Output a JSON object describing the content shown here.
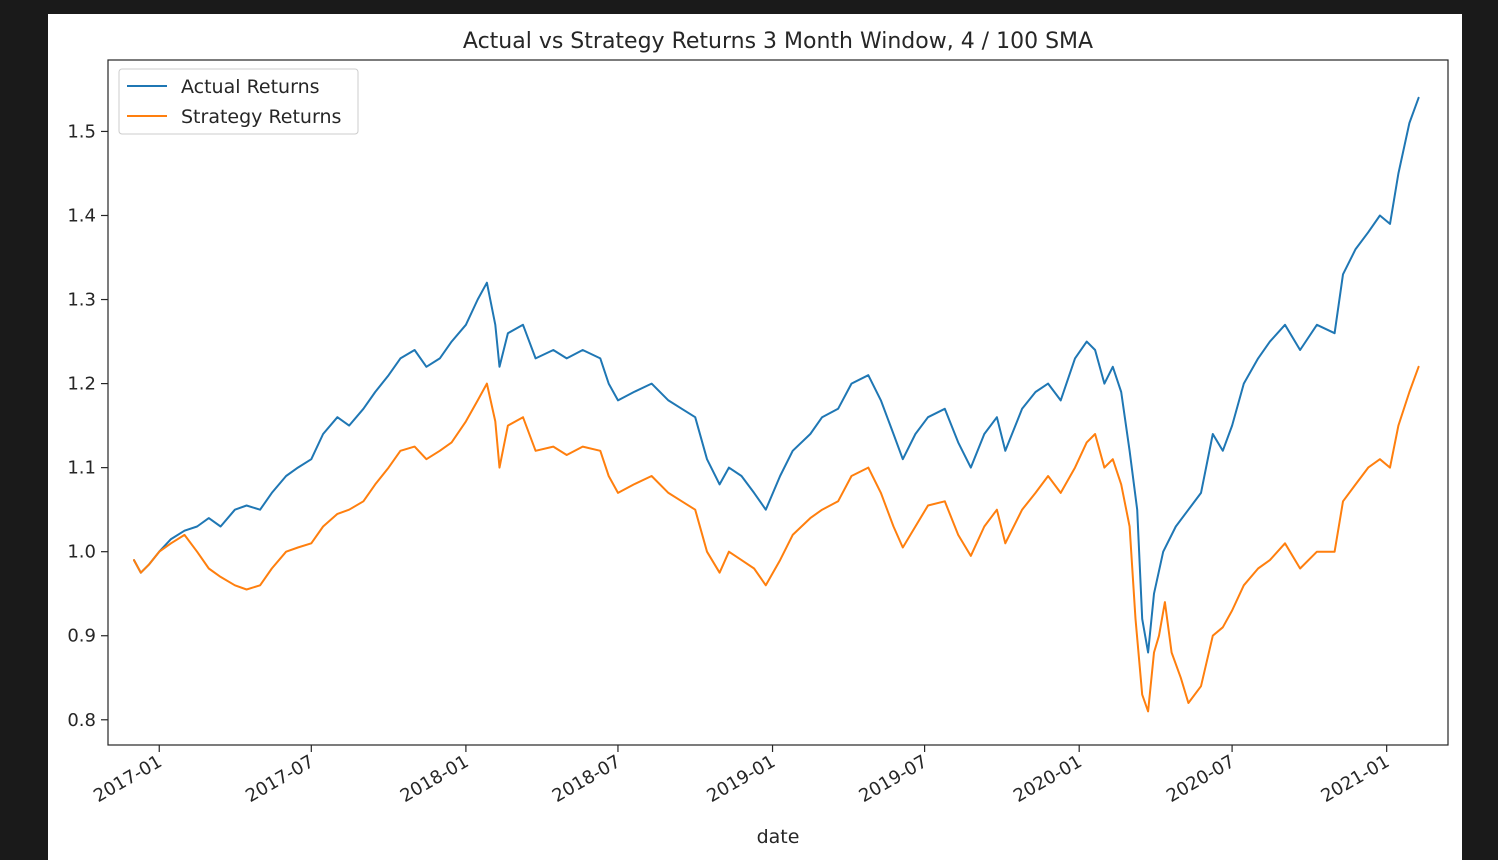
{
  "chart_data": {
    "type": "line",
    "title": "Actual vs Strategy Returns 3 Month Window, 4 / 100 SMA",
    "xlabel": "date",
    "ylabel": "",
    "xlim": [
      "2016-11-01",
      "2021-03-15"
    ],
    "ylim": [
      0.77,
      1.585
    ],
    "y_ticks": [
      0.8,
      0.9,
      1.0,
      1.1,
      1.2,
      1.3,
      1.4,
      1.5
    ],
    "x_ticks": [
      "2017-01",
      "2017-07",
      "2018-01",
      "2018-07",
      "2019-01",
      "2019-07",
      "2020-01",
      "2020-07",
      "2021-01"
    ],
    "grid": false,
    "legend_position": "top-left",
    "colors": {
      "actual": "#1f77b4",
      "strategy": "#ff7f0e"
    },
    "series": [
      {
        "name": "Actual Returns",
        "color": "#1f77b4",
        "points": [
          [
            "2016-12-02",
            0.99
          ],
          [
            "2016-12-10",
            0.975
          ],
          [
            "2016-12-20",
            0.985
          ],
          [
            "2017-01-01",
            1.0
          ],
          [
            "2017-01-15",
            1.015
          ],
          [
            "2017-01-31",
            1.025
          ],
          [
            "2017-02-15",
            1.03
          ],
          [
            "2017-03-01",
            1.04
          ],
          [
            "2017-03-15",
            1.03
          ],
          [
            "2017-04-01",
            1.05
          ],
          [
            "2017-04-15",
            1.055
          ],
          [
            "2017-05-01",
            1.05
          ],
          [
            "2017-05-15",
            1.07
          ],
          [
            "2017-06-01",
            1.09
          ],
          [
            "2017-06-15",
            1.1
          ],
          [
            "2017-07-01",
            1.11
          ],
          [
            "2017-07-15",
            1.14
          ],
          [
            "2017-08-01",
            1.16
          ],
          [
            "2017-08-15",
            1.15
          ],
          [
            "2017-09-01",
            1.17
          ],
          [
            "2017-09-15",
            1.19
          ],
          [
            "2017-10-01",
            1.21
          ],
          [
            "2017-10-15",
            1.23
          ],
          [
            "2017-11-01",
            1.24
          ],
          [
            "2017-11-15",
            1.22
          ],
          [
            "2017-12-01",
            1.23
          ],
          [
            "2017-12-15",
            1.25
          ],
          [
            "2018-01-01",
            1.27
          ],
          [
            "2018-01-15",
            1.3
          ],
          [
            "2018-01-26",
            1.32
          ],
          [
            "2018-02-05",
            1.27
          ],
          [
            "2018-02-10",
            1.22
          ],
          [
            "2018-02-20",
            1.26
          ],
          [
            "2018-03-10",
            1.27
          ],
          [
            "2018-03-25",
            1.23
          ],
          [
            "2018-04-15",
            1.24
          ],
          [
            "2018-05-01",
            1.23
          ],
          [
            "2018-05-20",
            1.24
          ],
          [
            "2018-06-10",
            1.23
          ],
          [
            "2018-06-20",
            1.2
          ],
          [
            "2018-07-01",
            1.18
          ],
          [
            "2018-07-20",
            1.19
          ],
          [
            "2018-08-10",
            1.2
          ],
          [
            "2018-08-30",
            1.18
          ],
          [
            "2018-09-15",
            1.17
          ],
          [
            "2018-10-01",
            1.16
          ],
          [
            "2018-10-15",
            1.11
          ],
          [
            "2018-10-30",
            1.08
          ],
          [
            "2018-11-10",
            1.1
          ],
          [
            "2018-11-25",
            1.09
          ],
          [
            "2018-12-10",
            1.07
          ],
          [
            "2018-12-24",
            1.05
          ],
          [
            "2019-01-10",
            1.09
          ],
          [
            "2019-01-25",
            1.12
          ],
          [
            "2019-02-15",
            1.14
          ],
          [
            "2019-03-01",
            1.16
          ],
          [
            "2019-03-20",
            1.17
          ],
          [
            "2019-04-05",
            1.2
          ],
          [
            "2019-04-25",
            1.21
          ],
          [
            "2019-05-10",
            1.18
          ],
          [
            "2019-05-25",
            1.14
          ],
          [
            "2019-06-05",
            1.11
          ],
          [
            "2019-06-20",
            1.14
          ],
          [
            "2019-07-05",
            1.16
          ],
          [
            "2019-07-25",
            1.17
          ],
          [
            "2019-08-10",
            1.13
          ],
          [
            "2019-08-25",
            1.1
          ],
          [
            "2019-09-10",
            1.14
          ],
          [
            "2019-09-25",
            1.16
          ],
          [
            "2019-10-05",
            1.12
          ],
          [
            "2019-10-25",
            1.17
          ],
          [
            "2019-11-10",
            1.19
          ],
          [
            "2019-11-25",
            1.2
          ],
          [
            "2019-12-10",
            1.18
          ],
          [
            "2019-12-27",
            1.23
          ],
          [
            "2020-01-10",
            1.25
          ],
          [
            "2020-01-20",
            1.24
          ],
          [
            "2020-01-31",
            1.2
          ],
          [
            "2020-02-10",
            1.22
          ],
          [
            "2020-02-20",
            1.19
          ],
          [
            "2020-03-01",
            1.12
          ],
          [
            "2020-03-10",
            1.05
          ],
          [
            "2020-03-16",
            0.92
          ],
          [
            "2020-03-23",
            0.88
          ],
          [
            "2020-03-30",
            0.95
          ],
          [
            "2020-04-10",
            1.0
          ],
          [
            "2020-04-25",
            1.03
          ],
          [
            "2020-05-10",
            1.05
          ],
          [
            "2020-05-25",
            1.07
          ],
          [
            "2020-06-08",
            1.14
          ],
          [
            "2020-06-20",
            1.12
          ],
          [
            "2020-07-01",
            1.15
          ],
          [
            "2020-07-15",
            1.2
          ],
          [
            "2020-08-01",
            1.23
          ],
          [
            "2020-08-15",
            1.25
          ],
          [
            "2020-09-02",
            1.27
          ],
          [
            "2020-09-20",
            1.24
          ],
          [
            "2020-10-10",
            1.27
          ],
          [
            "2020-10-31",
            1.26
          ],
          [
            "2020-11-10",
            1.33
          ],
          [
            "2020-11-25",
            1.36
          ],
          [
            "2020-12-10",
            1.38
          ],
          [
            "2020-12-24",
            1.4
          ],
          [
            "2021-01-05",
            1.39
          ],
          [
            "2021-01-15",
            1.45
          ],
          [
            "2021-01-28",
            1.51
          ],
          [
            "2021-02-08",
            1.54
          ]
        ]
      },
      {
        "name": "Strategy Returns",
        "color": "#ff7f0e",
        "points": [
          [
            "2016-12-02",
            0.99
          ],
          [
            "2016-12-10",
            0.975
          ],
          [
            "2016-12-20",
            0.985
          ],
          [
            "2017-01-01",
            1.0
          ],
          [
            "2017-01-15",
            1.01
          ],
          [
            "2017-01-31",
            1.02
          ],
          [
            "2017-02-15",
            1.0
          ],
          [
            "2017-03-01",
            0.98
          ],
          [
            "2017-03-15",
            0.97
          ],
          [
            "2017-04-01",
            0.96
          ],
          [
            "2017-04-15",
            0.955
          ],
          [
            "2017-05-01",
            0.96
          ],
          [
            "2017-05-15",
            0.98
          ],
          [
            "2017-06-01",
            1.0
          ],
          [
            "2017-06-15",
            1.005
          ],
          [
            "2017-07-01",
            1.01
          ],
          [
            "2017-07-15",
            1.03
          ],
          [
            "2017-08-01",
            1.045
          ],
          [
            "2017-08-15",
            1.05
          ],
          [
            "2017-09-01",
            1.06
          ],
          [
            "2017-09-15",
            1.08
          ],
          [
            "2017-10-01",
            1.1
          ],
          [
            "2017-10-15",
            1.12
          ],
          [
            "2017-11-01",
            1.125
          ],
          [
            "2017-11-15",
            1.11
          ],
          [
            "2017-12-01",
            1.12
          ],
          [
            "2017-12-15",
            1.13
          ],
          [
            "2018-01-01",
            1.155
          ],
          [
            "2018-01-15",
            1.18
          ],
          [
            "2018-01-26",
            1.2
          ],
          [
            "2018-02-05",
            1.155
          ],
          [
            "2018-02-10",
            1.1
          ],
          [
            "2018-02-20",
            1.15
          ],
          [
            "2018-03-10",
            1.16
          ],
          [
            "2018-03-25",
            1.12
          ],
          [
            "2018-04-15",
            1.125
          ],
          [
            "2018-05-01",
            1.115
          ],
          [
            "2018-05-20",
            1.125
          ],
          [
            "2018-06-10",
            1.12
          ],
          [
            "2018-06-20",
            1.09
          ],
          [
            "2018-07-01",
            1.07
          ],
          [
            "2018-07-20",
            1.08
          ],
          [
            "2018-08-10",
            1.09
          ],
          [
            "2018-08-30",
            1.07
          ],
          [
            "2018-09-15",
            1.06
          ],
          [
            "2018-10-01",
            1.05
          ],
          [
            "2018-10-15",
            1.0
          ],
          [
            "2018-10-30",
            0.975
          ],
          [
            "2018-11-10",
            1.0
          ],
          [
            "2018-11-25",
            0.99
          ],
          [
            "2018-12-10",
            0.98
          ],
          [
            "2018-12-24",
            0.96
          ],
          [
            "2019-01-10",
            0.99
          ],
          [
            "2019-01-25",
            1.02
          ],
          [
            "2019-02-15",
            1.04
          ],
          [
            "2019-03-01",
            1.05
          ],
          [
            "2019-03-20",
            1.06
          ],
          [
            "2019-04-05",
            1.09
          ],
          [
            "2019-04-25",
            1.1
          ],
          [
            "2019-05-10",
            1.07
          ],
          [
            "2019-05-25",
            1.03
          ],
          [
            "2019-06-05",
            1.005
          ],
          [
            "2019-06-20",
            1.03
          ],
          [
            "2019-07-05",
            1.055
          ],
          [
            "2019-07-25",
            1.06
          ],
          [
            "2019-08-10",
            1.02
          ],
          [
            "2019-08-25",
            0.995
          ],
          [
            "2019-09-10",
            1.03
          ],
          [
            "2019-09-25",
            1.05
          ],
          [
            "2019-10-05",
            1.01
          ],
          [
            "2019-10-25",
            1.05
          ],
          [
            "2019-11-10",
            1.07
          ],
          [
            "2019-11-25",
            1.09
          ],
          [
            "2019-12-10",
            1.07
          ],
          [
            "2019-12-27",
            1.1
          ],
          [
            "2020-01-10",
            1.13
          ],
          [
            "2020-01-20",
            1.14
          ],
          [
            "2020-01-31",
            1.1
          ],
          [
            "2020-02-10",
            1.11
          ],
          [
            "2020-02-20",
            1.08
          ],
          [
            "2020-03-01",
            1.03
          ],
          [
            "2020-03-08",
            0.92
          ],
          [
            "2020-03-16",
            0.83
          ],
          [
            "2020-03-23",
            0.81
          ],
          [
            "2020-03-30",
            0.88
          ],
          [
            "2020-04-05",
            0.9
          ],
          [
            "2020-04-12",
            0.94
          ],
          [
            "2020-04-20",
            0.88
          ],
          [
            "2020-05-01",
            0.85
          ],
          [
            "2020-05-10",
            0.82
          ],
          [
            "2020-05-25",
            0.84
          ],
          [
            "2020-06-08",
            0.9
          ],
          [
            "2020-06-20",
            0.91
          ],
          [
            "2020-07-01",
            0.93
          ],
          [
            "2020-07-15",
            0.96
          ],
          [
            "2020-08-01",
            0.98
          ],
          [
            "2020-08-15",
            0.99
          ],
          [
            "2020-09-02",
            1.01
          ],
          [
            "2020-09-20",
            0.98
          ],
          [
            "2020-10-10",
            1.0
          ],
          [
            "2020-10-31",
            1.0
          ],
          [
            "2020-11-10",
            1.06
          ],
          [
            "2020-11-25",
            1.08
          ],
          [
            "2020-12-10",
            1.1
          ],
          [
            "2020-12-24",
            1.11
          ],
          [
            "2021-01-05",
            1.1
          ],
          [
            "2021-01-15",
            1.15
          ],
          [
            "2021-01-28",
            1.19
          ],
          [
            "2021-02-08",
            1.22
          ]
        ]
      }
    ]
  }
}
